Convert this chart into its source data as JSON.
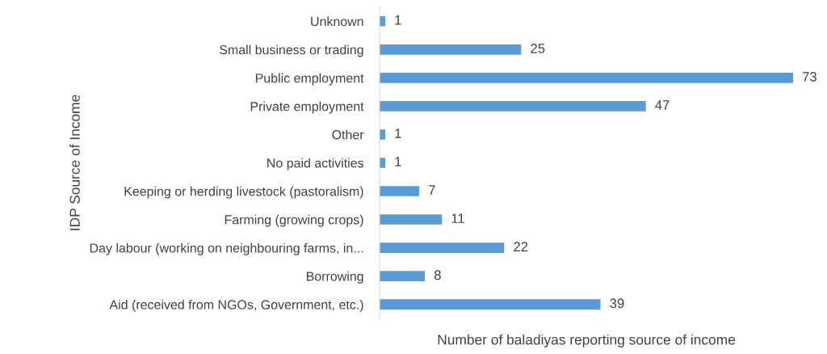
{
  "chart_data": {
    "type": "bar",
    "orientation": "horizontal",
    "ylabel": "IDP Source of Income",
    "xlabel": "Number of baladiyas reporting source of income",
    "categories": [
      "Unknown",
      "Small business or trading",
      "Public employment",
      "Private employment",
      "Other",
      "No paid activities",
      "Keeping or herding livestock (pastoralism)",
      "Farming (growing crops)",
      "Day labour (working on neighbouring farms, in...",
      "Borrowing",
      "Aid (received from NGOs, Government, etc.)"
    ],
    "values": [
      1,
      25,
      73,
      47,
      1,
      1,
      7,
      11,
      22,
      8,
      39
    ],
    "color": "#5b9bd5",
    "data_labels": true,
    "grid": false,
    "legend": false
  }
}
